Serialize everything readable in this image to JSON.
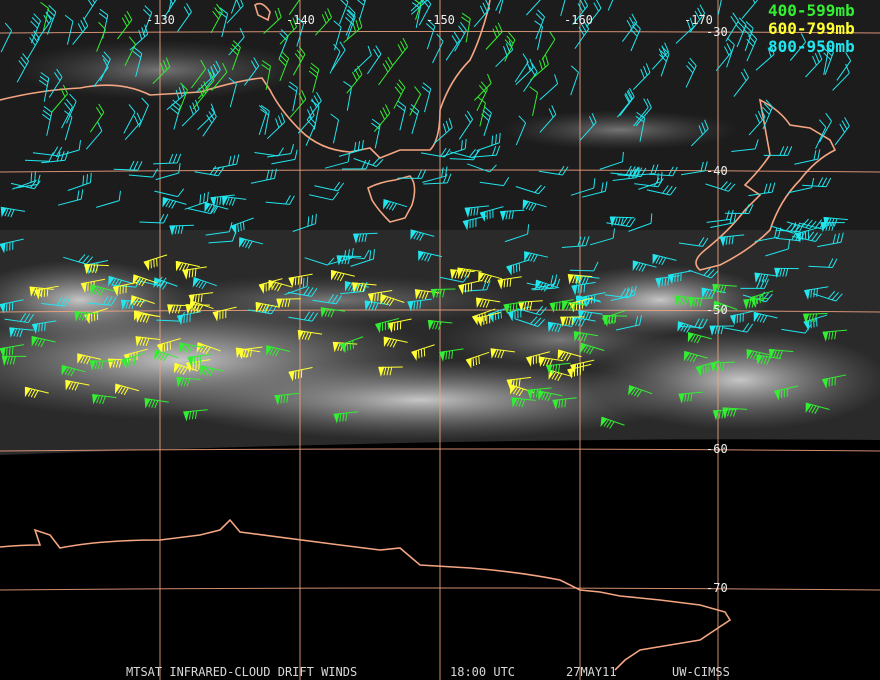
{
  "map": {
    "longitude_labels": [
      "-130",
      "-140",
      "-150",
      "-160",
      "-170"
    ],
    "latitude_labels": [
      "-30",
      "-40",
      "-50",
      "-60",
      "-70"
    ],
    "legend": [
      "400-599mb",
      "600-799mb",
      "800-950mb"
    ],
    "footer": [
      "MTSAT INFRARED-CLOUD DRIFT WINDS",
      "18:00 UTC",
      "27MAY11",
      "UW-CIMSS"
    ]
  }
}
